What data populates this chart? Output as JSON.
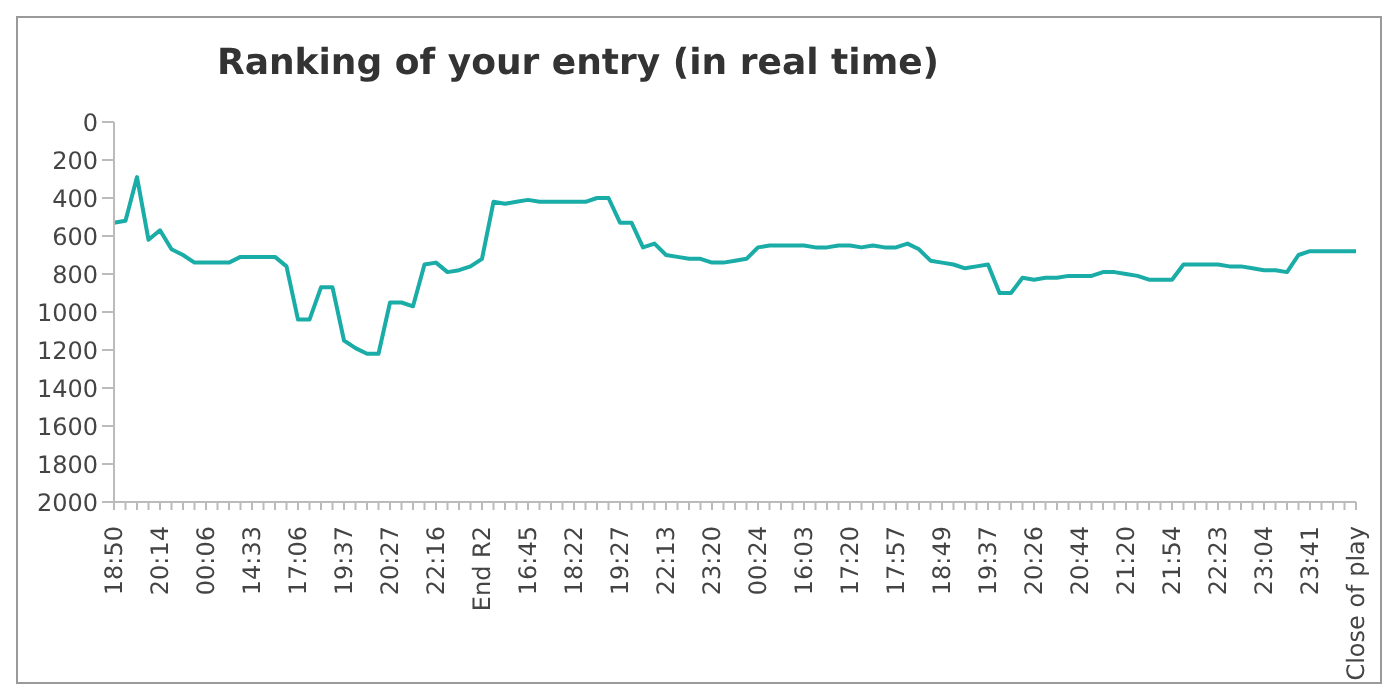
{
  "chart_data": {
    "type": "line",
    "title": "Ranking of your entry (in real time)",
    "categories": [
      "18:50",
      null,
      null,
      null,
      "20:14",
      null,
      null,
      null,
      "00:06",
      null,
      null,
      null,
      "14:33",
      null,
      null,
      null,
      "17:06",
      null,
      null,
      null,
      "19:37",
      null,
      null,
      null,
      "20:27",
      null,
      null,
      null,
      "22:16",
      null,
      null,
      null,
      "End R2",
      null,
      null,
      null,
      "16:45",
      null,
      null,
      null,
      "18:22",
      null,
      null,
      null,
      "19:27",
      null,
      null,
      null,
      "22:13",
      null,
      null,
      null,
      "23:20",
      null,
      null,
      null,
      "00:24",
      null,
      null,
      null,
      "16:03",
      null,
      null,
      null,
      "17:20",
      null,
      null,
      null,
      "17:57",
      null,
      null,
      null,
      "18:49",
      null,
      null,
      null,
      "19:37",
      null,
      null,
      null,
      "20:26",
      null,
      null,
      null,
      "20:44",
      null,
      null,
      null,
      "21:20",
      null,
      null,
      null,
      "21:54",
      null,
      null,
      null,
      "22:23",
      null,
      null,
      null,
      "23:04",
      null,
      null,
      null,
      "23:41",
      null,
      null,
      null,
      "Close of play"
    ],
    "series": [
      {
        "color": "#1aaca6",
        "values": [
          530,
          520,
          290,
          620,
          570,
          670,
          700,
          740,
          740,
          740,
          740,
          710,
          710,
          710,
          710,
          760,
          1040,
          1040,
          870,
          870,
          1150,
          1190,
          1220,
          1220,
          950,
          950,
          970,
          750,
          740,
          790,
          780,
          760,
          720,
          420,
          430,
          420,
          410,
          420,
          420,
          420,
          420,
          420,
          400,
          400,
          530,
          530,
          660,
          640,
          700,
          710,
          720,
          720,
          740,
          740,
          730,
          720,
          660,
          650,
          650,
          650,
          650,
          660,
          660,
          650,
          650,
          660,
          650,
          660,
          660,
          640,
          670,
          730,
          740,
          750,
          770,
          760,
          750,
          900,
          900,
          820,
          830,
          820,
          820,
          810,
          810,
          810,
          790,
          790,
          800,
          810,
          830,
          830,
          830,
          750,
          750,
          750,
          750,
          760,
          760,
          770,
          780,
          780,
          790,
          700,
          680,
          680,
          680,
          680,
          680
        ]
      }
    ],
    "ylim": [
      2000,
      0
    ],
    "yticks": [
      0,
      200,
      400,
      600,
      800,
      1000,
      1200,
      1400,
      1600,
      1800,
      2000
    ],
    "grid": false,
    "marker": "none",
    "line_style": "solid"
  }
}
